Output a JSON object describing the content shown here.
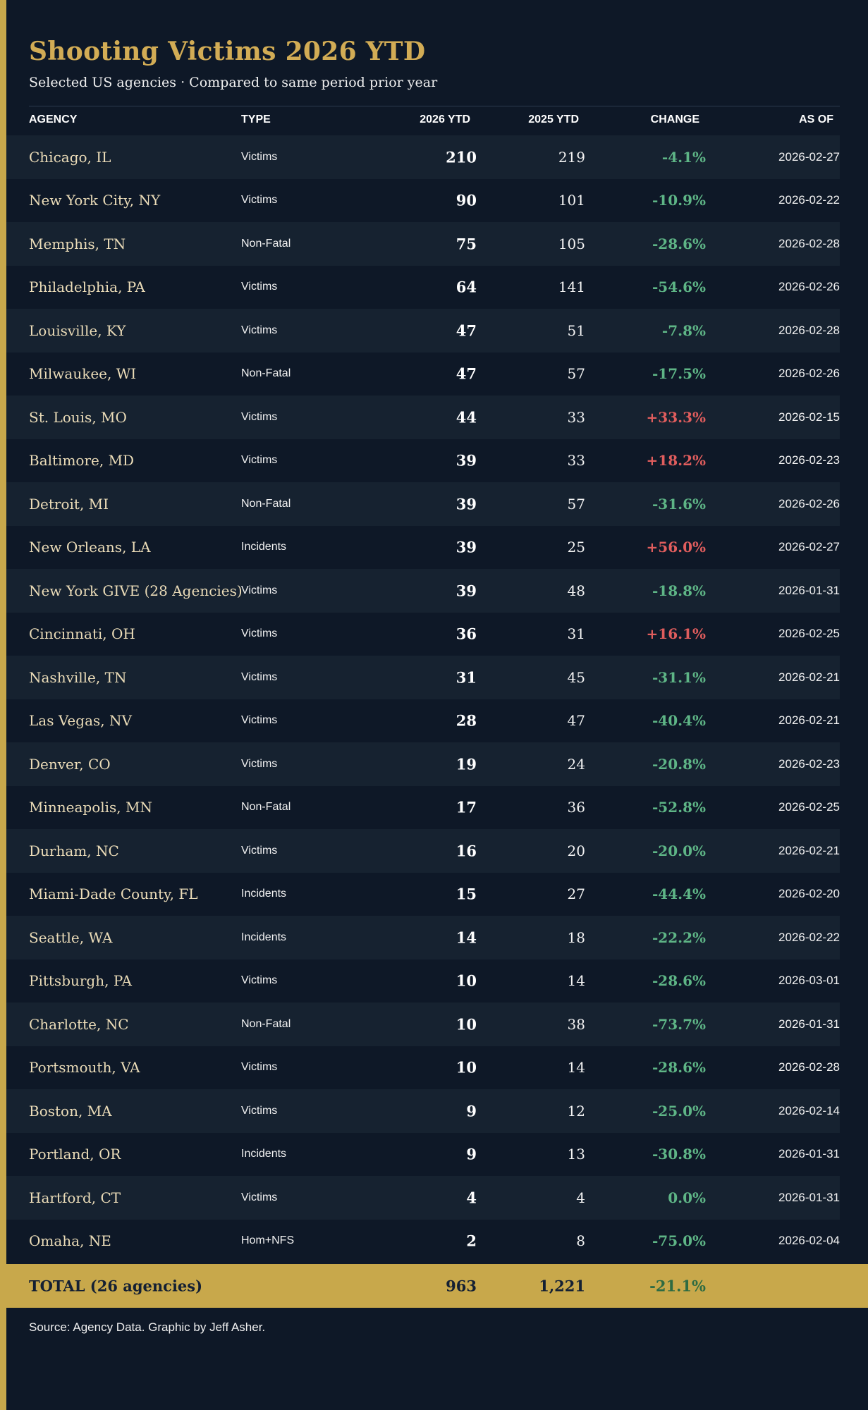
{
  "title": "Shooting Victims 2026 YTD",
  "subtitle": "Selected US agencies · Compared to same period prior year",
  "columns": {
    "agency": "AGENCY",
    "type": "TYPE",
    "ytd_2026": "2026 YTD",
    "ytd_2025": "2025 YTD",
    "change": "CHANGE",
    "as_of": "AS OF"
  },
  "colors": {
    "accent": "#c8a84b",
    "background": "#0e1827",
    "row_alt": "#162230",
    "decrease": "#5eb586",
    "increase": "#e05d5d"
  },
  "rows": [
    {
      "agency": "Chicago, IL",
      "type": "Victims",
      "ytd_2026": "210",
      "ytd_2025": "219",
      "change": "-4.1%",
      "as_of": "2026-02-27"
    },
    {
      "agency": "New York City, NY",
      "type": "Victims",
      "ytd_2026": "90",
      "ytd_2025": "101",
      "change": "-10.9%",
      "as_of": "2026-02-22"
    },
    {
      "agency": "Memphis, TN",
      "type": "Non-Fatal",
      "ytd_2026": "75",
      "ytd_2025": "105",
      "change": "-28.6%",
      "as_of": "2026-02-28"
    },
    {
      "agency": "Philadelphia, PA",
      "type": "Victims",
      "ytd_2026": "64",
      "ytd_2025": "141",
      "change": "-54.6%",
      "as_of": "2026-02-26"
    },
    {
      "agency": "Louisville, KY",
      "type": "Victims",
      "ytd_2026": "47",
      "ytd_2025": "51",
      "change": "-7.8%",
      "as_of": "2026-02-28"
    },
    {
      "agency": "Milwaukee, WI",
      "type": "Non-Fatal",
      "ytd_2026": "47",
      "ytd_2025": "57",
      "change": "-17.5%",
      "as_of": "2026-02-26"
    },
    {
      "agency": "St. Louis, MO",
      "type": "Victims",
      "ytd_2026": "44",
      "ytd_2025": "33",
      "change": "+33.3%",
      "as_of": "2026-02-15"
    },
    {
      "agency": "Baltimore, MD",
      "type": "Victims",
      "ytd_2026": "39",
      "ytd_2025": "33",
      "change": "+18.2%",
      "as_of": "2026-02-23"
    },
    {
      "agency": "Detroit, MI",
      "type": "Non-Fatal",
      "ytd_2026": "39",
      "ytd_2025": "57",
      "change": "-31.6%",
      "as_of": "2026-02-26"
    },
    {
      "agency": "New Orleans, LA",
      "type": "Incidents",
      "ytd_2026": "39",
      "ytd_2025": "25",
      "change": "+56.0%",
      "as_of": "2026-02-27"
    },
    {
      "agency": "New York GIVE (28 Agencies)",
      "type": "Victims",
      "ytd_2026": "39",
      "ytd_2025": "48",
      "change": "-18.8%",
      "as_of": "2026-01-31"
    },
    {
      "agency": "Cincinnati, OH",
      "type": "Victims",
      "ytd_2026": "36",
      "ytd_2025": "31",
      "change": "+16.1%",
      "as_of": "2026-02-25"
    },
    {
      "agency": "Nashville, TN",
      "type": "Victims",
      "ytd_2026": "31",
      "ytd_2025": "45",
      "change": "-31.1%",
      "as_of": "2026-02-21"
    },
    {
      "agency": "Las Vegas, NV",
      "type": "Victims",
      "ytd_2026": "28",
      "ytd_2025": "47",
      "change": "-40.4%",
      "as_of": "2026-02-21"
    },
    {
      "agency": "Denver, CO",
      "type": "Victims",
      "ytd_2026": "19",
      "ytd_2025": "24",
      "change": "-20.8%",
      "as_of": "2026-02-23"
    },
    {
      "agency": "Minneapolis, MN",
      "type": "Non-Fatal",
      "ytd_2026": "17",
      "ytd_2025": "36",
      "change": "-52.8%",
      "as_of": "2026-02-25"
    },
    {
      "agency": "Durham, NC",
      "type": "Victims",
      "ytd_2026": "16",
      "ytd_2025": "20",
      "change": "-20.0%",
      "as_of": "2026-02-21"
    },
    {
      "agency": "Miami-Dade County, FL",
      "type": "Incidents",
      "ytd_2026": "15",
      "ytd_2025": "27",
      "change": "-44.4%",
      "as_of": "2026-02-20"
    },
    {
      "agency": "Seattle, WA",
      "type": "Incidents",
      "ytd_2026": "14",
      "ytd_2025": "18",
      "change": "-22.2%",
      "as_of": "2026-02-22"
    },
    {
      "agency": "Pittsburgh, PA",
      "type": "Victims",
      "ytd_2026": "10",
      "ytd_2025": "14",
      "change": "-28.6%",
      "as_of": "2026-03-01"
    },
    {
      "agency": "Charlotte, NC",
      "type": "Non-Fatal",
      "ytd_2026": "10",
      "ytd_2025": "38",
      "change": "-73.7%",
      "as_of": "2026-01-31"
    },
    {
      "agency": "Portsmouth, VA",
      "type": "Victims",
      "ytd_2026": "10",
      "ytd_2025": "14",
      "change": "-28.6%",
      "as_of": "2026-02-28"
    },
    {
      "agency": "Boston, MA",
      "type": "Victims",
      "ytd_2026": "9",
      "ytd_2025": "12",
      "change": "-25.0%",
      "as_of": "2026-02-14"
    },
    {
      "agency": "Portland, OR",
      "type": "Incidents",
      "ytd_2026": "9",
      "ytd_2025": "13",
      "change": "-30.8%",
      "as_of": "2026-01-31"
    },
    {
      "agency": "Hartford, CT",
      "type": "Victims",
      "ytd_2026": "4",
      "ytd_2025": "4",
      "change": "0.0%",
      "as_of": "2026-01-31"
    },
    {
      "agency": "Omaha, NE",
      "type": "Hom+NFS",
      "ytd_2026": "2",
      "ytd_2025": "8",
      "change": "-75.0%",
      "as_of": "2026-02-04"
    }
  ],
  "total": {
    "label": "TOTAL (26 agencies)",
    "ytd_2026": "963",
    "ytd_2025": "1,221",
    "change": "-21.1%"
  },
  "source": "Source: Agency Data. Graphic by Jeff Asher."
}
